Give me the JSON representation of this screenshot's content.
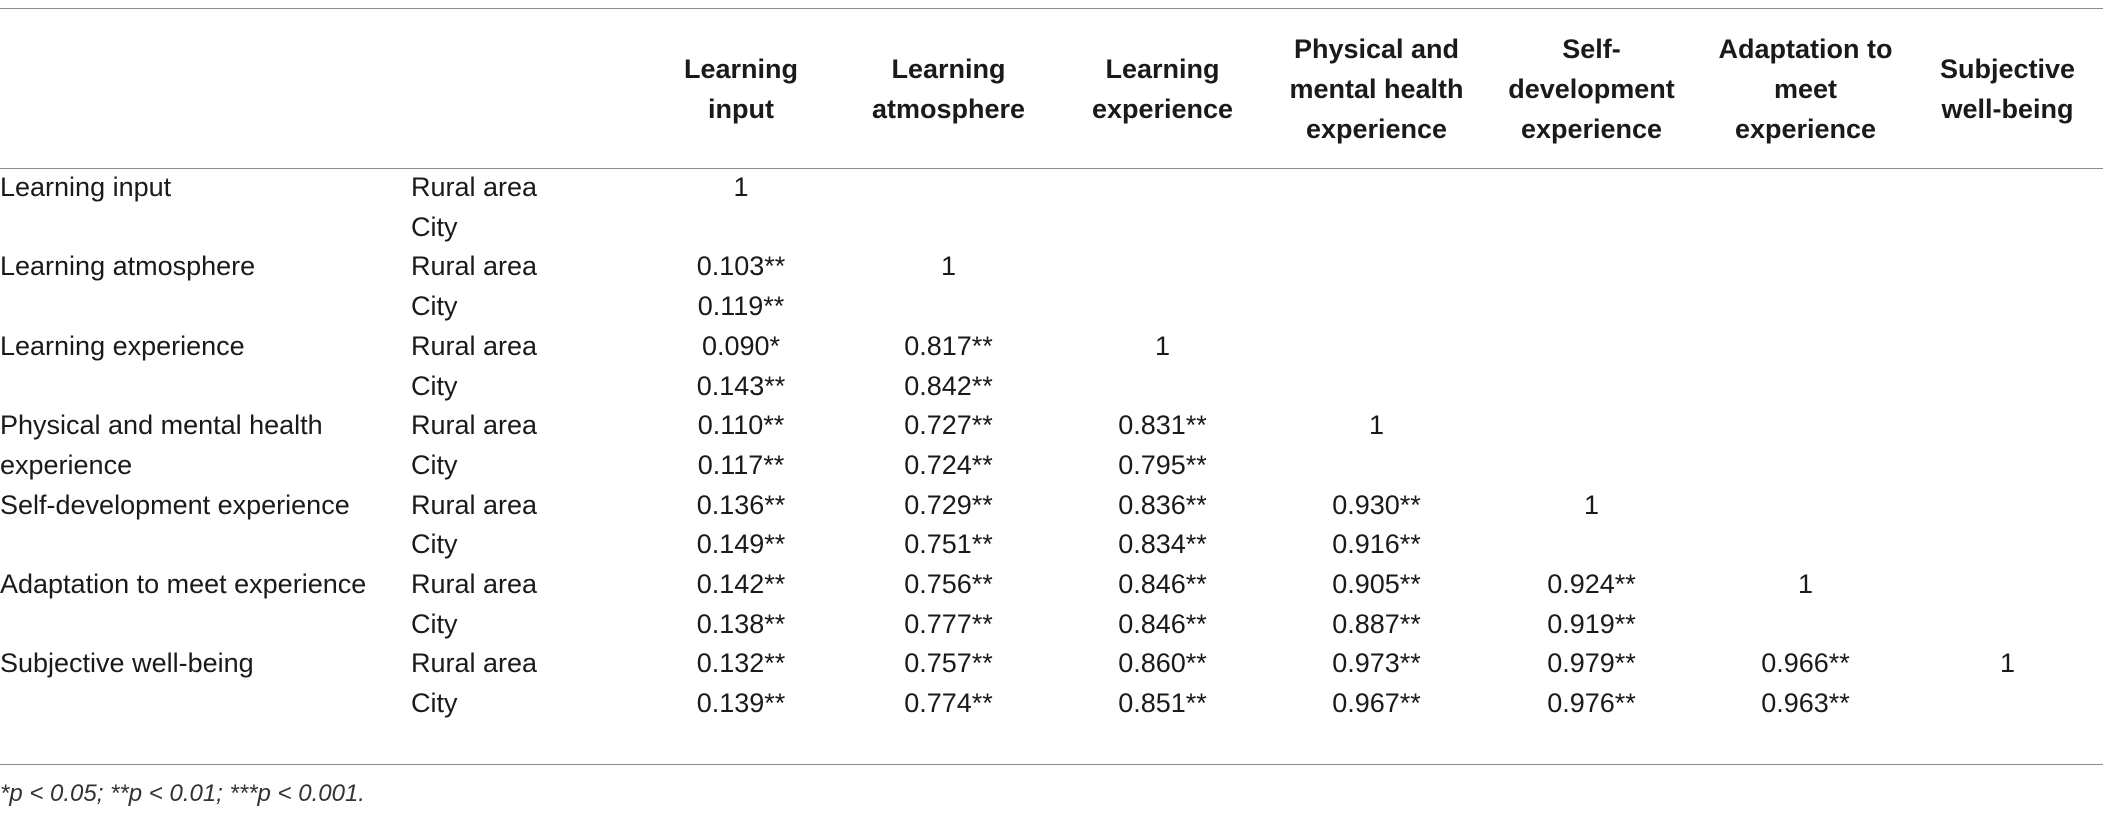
{
  "headers": [
    "",
    "",
    "Learning input",
    "Learning atmosphere",
    "Learning experience",
    "Physical and mental health experience",
    "Self-development experience",
    "Adaptation to meet experience",
    "Subjective well-being"
  ],
  "header_lines": [
    [],
    [],
    [
      "Learning",
      "input"
    ],
    [
      "Learning",
      "atmosphere"
    ],
    [
      "Learning",
      "experience"
    ],
    [
      "Physical and",
      "mental health",
      "experience"
    ],
    [
      "Self-",
      "development",
      "experience"
    ],
    [
      "Adaptation to",
      "meet",
      "experience"
    ],
    [
      "Subjective",
      "well-being"
    ]
  ],
  "rows": [
    {
      "variable": "Learning input",
      "rural": {
        "label": "Rural area",
        "values": [
          "1",
          "",
          "",
          "",
          "",
          "",
          ""
        ]
      },
      "city": {
        "label": "City",
        "values": [
          "",
          "",
          "",
          "",
          "",
          "",
          ""
        ]
      }
    },
    {
      "variable": "Learning atmosphere",
      "rural": {
        "label": "Rural area",
        "values": [
          "0.103**",
          "1",
          "",
          "",
          "",
          "",
          ""
        ]
      },
      "city": {
        "label": "City",
        "values": [
          "0.119**",
          "",
          "",
          "",
          "",
          "",
          ""
        ]
      }
    },
    {
      "variable": "Learning experience",
      "rural": {
        "label": "Rural area",
        "values": [
          "0.090*",
          "0.817**",
          "1",
          "",
          "",
          "",
          ""
        ]
      },
      "city": {
        "label": "City",
        "values": [
          "0.143**",
          "0.842**",
          "",
          "",
          "",
          "",
          ""
        ]
      }
    },
    {
      "variable": "Physical and mental health experience",
      "rural": {
        "label": "Rural area",
        "values": [
          "0.110**",
          "0.727**",
          "0.831**",
          "1",
          "",
          "",
          ""
        ]
      },
      "city": {
        "label": "City",
        "values": [
          "0.117**",
          "0.724**",
          "0.795**",
          "",
          "",
          "",
          ""
        ]
      }
    },
    {
      "variable": "Self-development experience",
      "rural": {
        "label": "Rural area",
        "values": [
          "0.136**",
          "0.729**",
          "0.836**",
          "0.930**",
          "1",
          "",
          ""
        ]
      },
      "city": {
        "label": "City",
        "values": [
          "0.149**",
          "0.751**",
          "0.834**",
          "0.916**",
          "",
          "",
          ""
        ]
      }
    },
    {
      "variable": "Adaptation to meet experience",
      "rural": {
        "label": "Rural area",
        "values": [
          "0.142**",
          "0.756**",
          "0.846**",
          "0.905**",
          "0.924**",
          "1",
          ""
        ]
      },
      "city": {
        "label": "City",
        "values": [
          "0.138**",
          "0.777**",
          "0.846**",
          "0.887**",
          "0.919**",
          "",
          ""
        ]
      }
    },
    {
      "variable": "Subjective well-being",
      "rural": {
        "label": "Rural area",
        "values": [
          "0.132**",
          "0.757**",
          "0.860**",
          "0.973**",
          "0.979**",
          "0.966**",
          "1"
        ]
      },
      "city": {
        "label": "City",
        "values": [
          "0.139**",
          "0.774**",
          "0.851**",
          "0.967**",
          "0.976**",
          "0.963**",
          ""
        ]
      }
    }
  ],
  "footnote": "*p < 0.05;  **p < 0.01;  ***p < 0.001."
}
